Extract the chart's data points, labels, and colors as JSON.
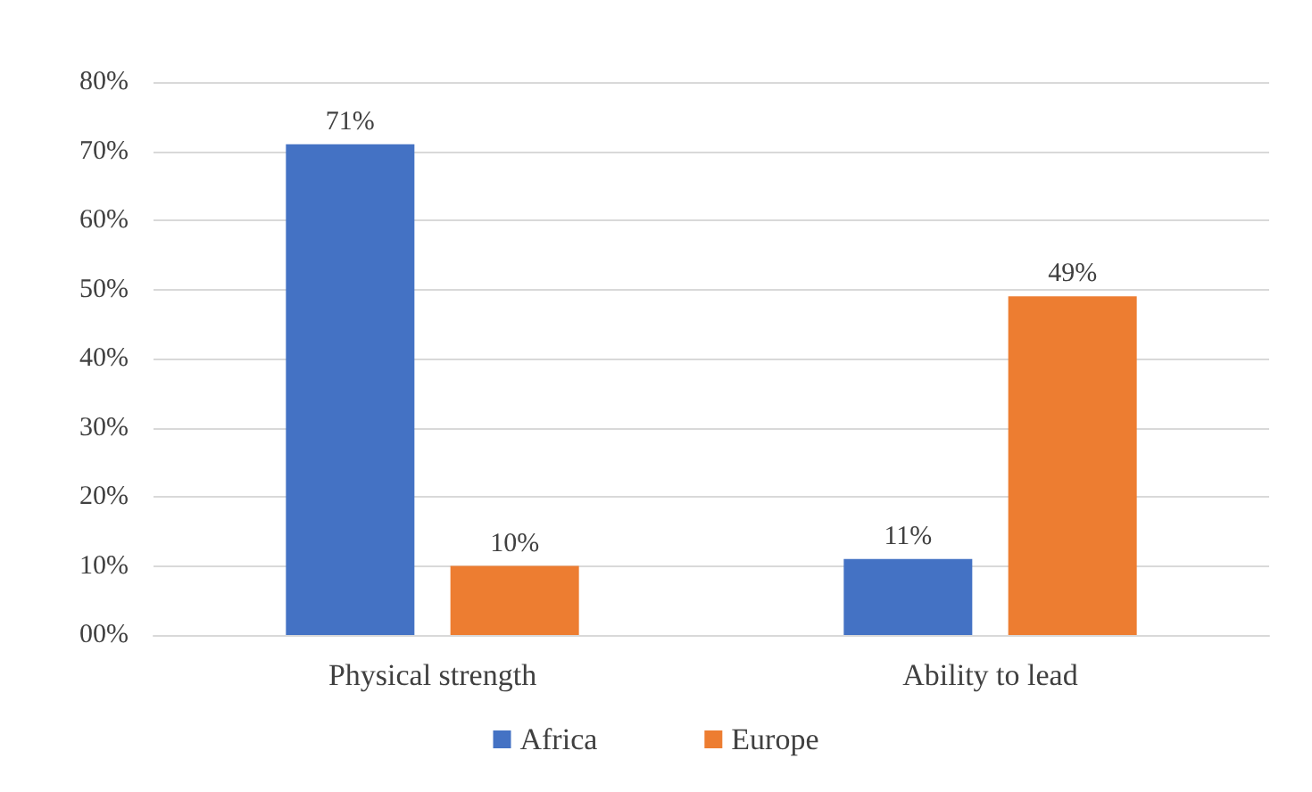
{
  "chart_data": {
    "type": "bar",
    "categories": [
      "Physical strength",
      "Ability to lead"
    ],
    "series": [
      {
        "name": "Africa",
        "color": "#4472c4",
        "values": [
          71,
          11
        ],
        "value_labels": [
          "71%",
          "11%"
        ]
      },
      {
        "name": "Europe",
        "color": "#ed7d31",
        "values": [
          10,
          49
        ],
        "value_labels": [
          "10%",
          "49%"
        ]
      }
    ],
    "ylim": [
      0,
      80
    ],
    "yticks": [
      {
        "value": 0,
        "label": "00%"
      },
      {
        "value": 10,
        "label": "10%"
      },
      {
        "value": 20,
        "label": "20%"
      },
      {
        "value": 30,
        "label": "30%"
      },
      {
        "value": 40,
        "label": "40%"
      },
      {
        "value": 50,
        "label": "50%"
      },
      {
        "value": 60,
        "label": "60%"
      },
      {
        "value": 70,
        "label": "70%"
      },
      {
        "value": 80,
        "label": "80%"
      }
    ],
    "grid": "y",
    "legend": "bottom"
  }
}
